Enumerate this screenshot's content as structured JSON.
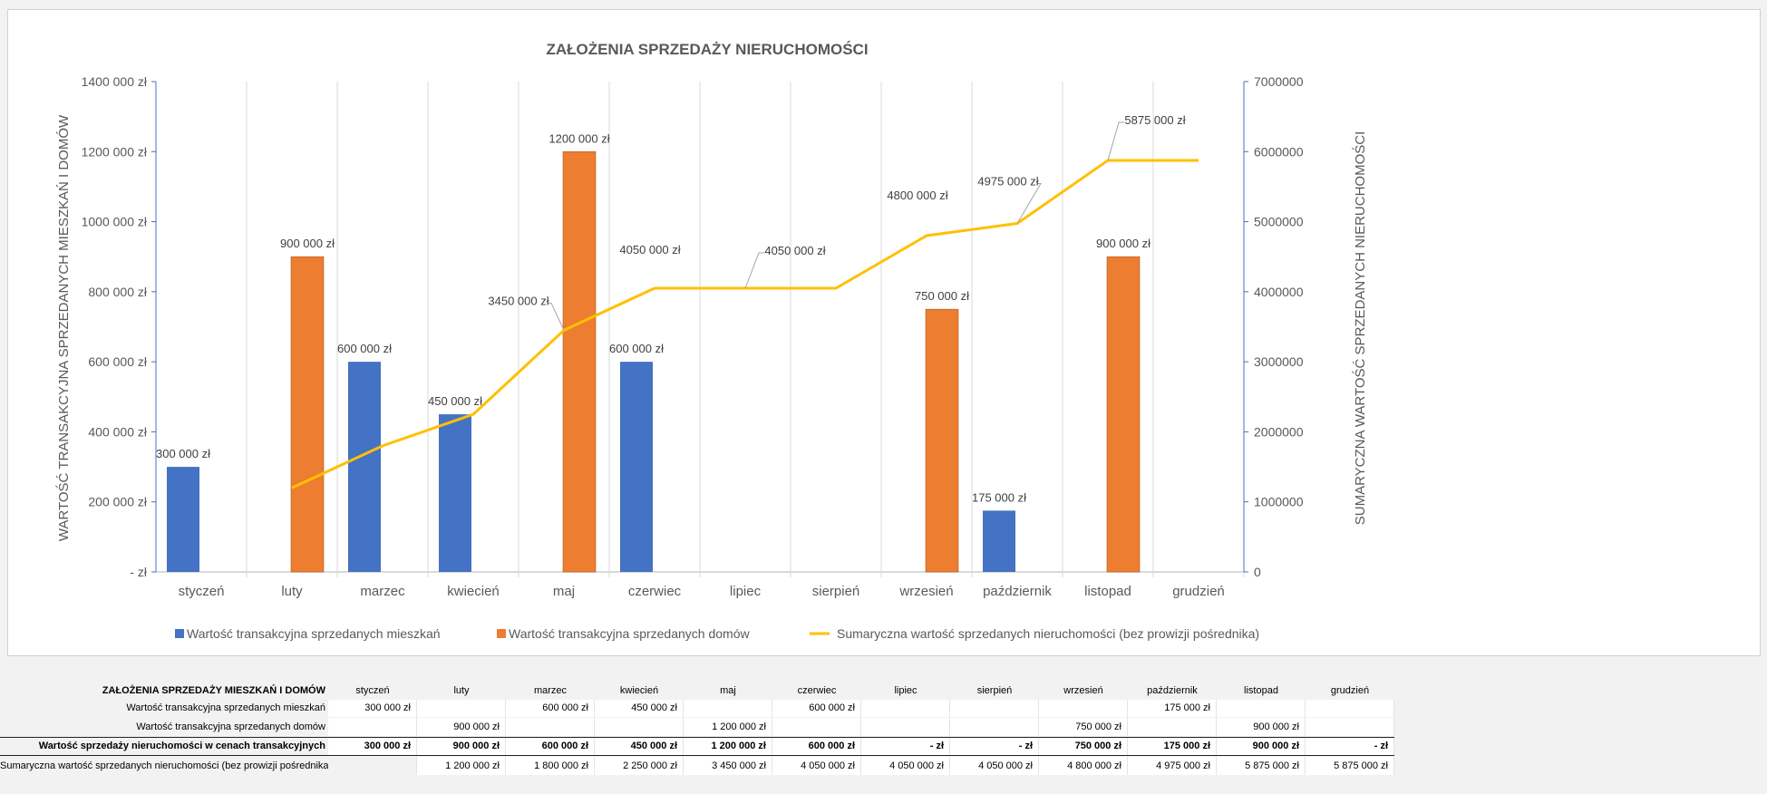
{
  "chart_data": {
    "type": "bar",
    "title": "ZAŁOŻENIA SPRZEDAŻY NIERUCHOMOŚCI",
    "ylabel": "WARTOŚĆ TRANSAKCYJNA SPRZEDANYCH MIESZKAŃ I DOMÓW",
    "y2label": "SUMARYCZNA WARTOŚĆ SPRZEDANYCH NIERUCHOMOŚCI",
    "categories": [
      "styczeń",
      "luty",
      "marzec",
      "kwiecień",
      "maj",
      "czerwiec",
      "lipiec",
      "sierpień",
      "wrzesień",
      "październik",
      "listopad",
      "grudzień"
    ],
    "ylim": [
      0,
      1400000
    ],
    "y2lim": [
      0,
      7000000
    ],
    "yticks": [
      "-  zł",
      "200 000 zł",
      "400 000 zł",
      "600 000 zł",
      "800 000 zł",
      "1000 000 zł",
      "1200 000 zł",
      "1400 000 zł"
    ],
    "y2ticks": [
      "0",
      "1000000",
      "2000000",
      "3000000",
      "4000000",
      "5000000",
      "6000000",
      "7000000"
    ],
    "grid": "vertical",
    "legend": "bottom",
    "series": [
      {
        "name": "Wartość transakcyjna sprzedanych mieszkań",
        "type": "bar",
        "color": "#4472c4",
        "axis": "left",
        "values": [
          300000,
          null,
          600000,
          450000,
          null,
          600000,
          null,
          null,
          null,
          175000,
          null,
          null
        ],
        "labels": [
          "300 000 zł",
          null,
          "600 000 zł",
          "450 000 zł",
          null,
          "600 000 zł",
          null,
          null,
          null,
          "175 000 zł",
          null,
          null
        ]
      },
      {
        "name": "Wartość transakcyjna sprzedanych domów",
        "type": "bar",
        "color": "#ed7d31",
        "axis": "left",
        "values": [
          null,
          900000,
          null,
          null,
          1200000,
          null,
          null,
          null,
          750000,
          null,
          900000,
          null
        ],
        "labels": [
          null,
          "900 000 zł",
          null,
          null,
          "1200 000 zł",
          null,
          null,
          null,
          "750 000 zł",
          null,
          "900 000 zł",
          null
        ]
      },
      {
        "name": "Sumaryczna wartość sprzedanych nieruchomości (bez prowizji pośrednika)",
        "type": "line",
        "color": "#ffc000",
        "axis": "right",
        "values": [
          null,
          1200000,
          1800000,
          2250000,
          3450000,
          4050000,
          4050000,
          4050000,
          4800000,
          4975000,
          5875000,
          5875000
        ],
        "labels": [
          null,
          null,
          null,
          null,
          "3450 000 zł",
          "4050 000 zł",
          "4050 000 zł",
          null,
          "4800 000 zł",
          "4975 000 zł",
          "5875 000 zł",
          null
        ]
      }
    ]
  },
  "table": {
    "title": "ZAŁOŻENIA SPRZEDAŻY  MIESZKAŃ I DOMÓW",
    "months": [
      "styczeń",
      "luty",
      "marzec",
      "kwiecień",
      "maj",
      "czerwiec",
      "lipiec",
      "sierpień",
      "wrzesień",
      "październik",
      "listopad",
      "grudzień"
    ],
    "rows": [
      {
        "label": "Wartość transakcyjna sprzedanych mieszkań",
        "cells": [
          "300 000 zł",
          "",
          "600 000 zł",
          "450 000 zł",
          "",
          "600 000 zł",
          "",
          "",
          "",
          "175 000 zł",
          "",
          ""
        ]
      },
      {
        "label": "Wartość transakcyjna sprzedanych domów",
        "cells": [
          "",
          "900 000 zł",
          "",
          "",
          "1 200 000 zł",
          "",
          "",
          "",
          "750 000 zł",
          "",
          "900 000 zł",
          ""
        ]
      },
      {
        "label": "Wartość sprzedaży nieruchomości w cenach transakcyjnych",
        "cells": [
          "300 000 zł",
          "900 000 zł",
          "600 000 zł",
          "450 000 zł",
          "1 200 000 zł",
          "600 000 zł",
          "-    zł",
          "-    zł",
          "750 000 zł",
          "175 000 zł",
          "900 000 zł",
          "-    zł"
        ]
      },
      {
        "label": "Sumaryczna wartość sprzedanych nieruchomości (bez prowizji pośrednika)",
        "cells": [
          "",
          "1 200 000 zł",
          "1 800 000 zł",
          "2 250 000 zł",
          "3 450 000 zł",
          "4 050 000 zł",
          "4 050 000 zł",
          "4 050 000 zł",
          "4 800 000 zł",
          "4 975 000 zł",
          "5 875 000 zł",
          "5 875 000 zł"
        ]
      }
    ]
  }
}
